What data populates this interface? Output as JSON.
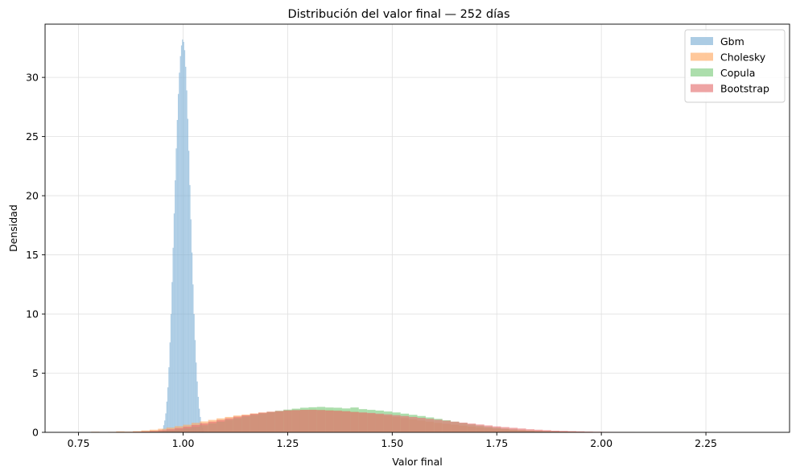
{
  "chart_data": {
    "type": "histogram",
    "title": "Distribución del valor final — 252 días",
    "xlabel": "Valor final",
    "ylabel": "Densidad",
    "xlim": [
      0.67,
      2.45
    ],
    "ylim": [
      0,
      34.5
    ],
    "x_ticks": [
      "0.75",
      "1.00",
      "1.25",
      "1.50",
      "1.75",
      "2.00",
      "2.25"
    ],
    "y_ticks": [
      "0",
      "5",
      "10",
      "15",
      "20",
      "25",
      "30"
    ],
    "grid": true,
    "legend_position": "top-right",
    "series": [
      {
        "name": "Gbm",
        "color": "#7fb1d6",
        "bins": {
          "start": 0.95,
          "width": 0.0025,
          "density": [
            0.3,
            0.6,
            1.0,
            1.6,
            2.6,
            3.8,
            5.5,
            7.6,
            10.0,
            12.7,
            15.6,
            18.5,
            21.3,
            24.0,
            26.4,
            28.6,
            30.4,
            31.8,
            32.7,
            33.2,
            33.0,
            32.3,
            30.9,
            28.9,
            26.5,
            23.8,
            20.9,
            18.0,
            15.2,
            12.5,
            10.0,
            7.8,
            5.9,
            4.3,
            3.0,
            2.0,
            1.3,
            0.8,
            0.4,
            0.2
          ]
        }
      },
      {
        "name": "Cholesky",
        "color": "#ffaa66",
        "bins": {
          "start": 0.78,
          "width": 0.02,
          "density": [
            0.05,
            0.03,
            0.04,
            0.08,
            0.06,
            0.1,
            0.16,
            0.22,
            0.3,
            0.4,
            0.52,
            0.64,
            0.8,
            0.92,
            1.05,
            1.18,
            1.3,
            1.42,
            1.5,
            1.6,
            1.68,
            1.74,
            1.8,
            1.84,
            1.88,
            1.9,
            1.92,
            1.9,
            1.88,
            1.84,
            1.8,
            1.74,
            1.66,
            1.58,
            1.5,
            1.4,
            1.3,
            1.2,
            1.1,
            1.0,
            0.9,
            0.8,
            0.72,
            0.64,
            0.56,
            0.48,
            0.42,
            0.36,
            0.3,
            0.26,
            0.22,
            0.18,
            0.15,
            0.12,
            0.1,
            0.08,
            0.07,
            0.06,
            0.05,
            0.04,
            0.03,
            0.03,
            0.02,
            0.02,
            0.02,
            0.01,
            0.01,
            0.01,
            0.01,
            0.01,
            0.01,
            0.01,
            0.01
          ]
        }
      },
      {
        "name": "Copula",
        "color": "#80cc80",
        "bins": {
          "start": 0.88,
          "width": 0.02,
          "density": [
            0.02,
            0.04,
            0.06,
            0.1,
            0.16,
            0.24,
            0.34,
            0.46,
            0.6,
            0.76,
            0.9,
            1.06,
            1.2,
            1.34,
            1.48,
            1.6,
            1.72,
            1.82,
            1.92,
            2.0,
            2.08,
            2.12,
            2.15,
            2.1,
            2.08,
            2.02,
            2.1,
            1.96,
            1.9,
            1.84,
            1.76,
            1.68,
            1.58,
            1.48,
            1.38,
            1.26,
            1.14,
            1.02,
            0.9,
            0.78,
            0.66,
            0.56,
            0.46,
            0.38,
            0.3,
            0.24,
            0.18,
            0.14,
            0.1,
            0.08,
            0.06,
            0.04,
            0.03,
            0.02,
            0.02,
            0.01,
            0.01
          ]
        }
      },
      {
        "name": "Bootstrap",
        "color": "#e57373",
        "bins": {
          "start": 0.84,
          "width": 0.02,
          "density": [
            0.02,
            0.03,
            0.05,
            0.08,
            0.12,
            0.18,
            0.26,
            0.36,
            0.48,
            0.62,
            0.76,
            0.9,
            1.04,
            1.18,
            1.32,
            1.44,
            1.56,
            1.66,
            1.74,
            1.8,
            1.86,
            1.88,
            1.9,
            1.9,
            1.88,
            1.84,
            1.82,
            1.78,
            1.72,
            1.68,
            1.64,
            1.58,
            1.52,
            1.45,
            1.38,
            1.3,
            1.22,
            1.14,
            1.06,
            0.98,
            0.9,
            0.82,
            0.74,
            0.66,
            0.58,
            0.5,
            0.44,
            0.38,
            0.32,
            0.26,
            0.22,
            0.18,
            0.14,
            0.12,
            0.1,
            0.08,
            0.06,
            0.05,
            0.04,
            0.03,
            0.02,
            0.02,
            0.01,
            0.01,
            0.01,
            0.01,
            0.01,
            0.01,
            0.01,
            0.01,
            0.01
          ]
        }
      }
    ]
  }
}
